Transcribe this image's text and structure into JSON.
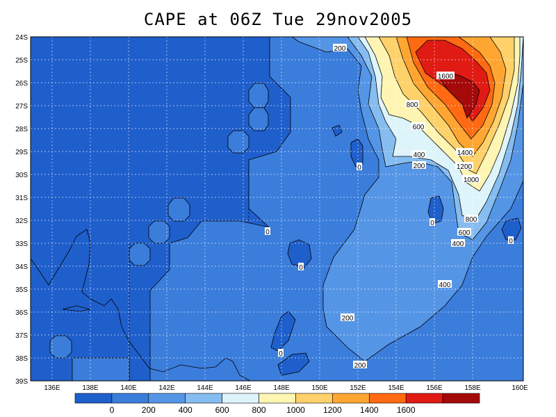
{
  "title": "CAPE at 06Z Tue 29nov2005",
  "map": {
    "lat_labels": [
      "24S",
      "25S",
      "26S",
      "27S",
      "28S",
      "29S",
      "30S",
      "31S",
      "32S",
      "33S",
      "34S",
      "35S",
      "36S",
      "37S",
      "38S",
      "39S"
    ],
    "lon_labels": [
      "136E",
      "138E",
      "140E",
      "142E",
      "144E",
      "146E",
      "148E",
      "150E",
      "152E",
      "154E",
      "156E",
      "158E",
      "160E"
    ],
    "contour_labels": [
      "200",
      "1600",
      "800",
      "600",
      "1400",
      "1200",
      "1000",
      "400",
      "200",
      "0",
      "0",
      "0",
      "0",
      "0",
      "800",
      "600",
      "400",
      "0",
      "400",
      "200",
      "0",
      "200"
    ]
  },
  "colorbar": {
    "colors": [
      "#1f5fcc",
      "#3b7ddb",
      "#5595e6",
      "#86bdf0",
      "#def4fb",
      "#fff5b3",
      "#ffd16b",
      "#ffa632",
      "#ff6a12",
      "#e01b14",
      "#a50a0a"
    ],
    "labels": [
      "0",
      "200",
      "400",
      "600",
      "800",
      "1000",
      "1200",
      "1400",
      "1600"
    ]
  }
}
